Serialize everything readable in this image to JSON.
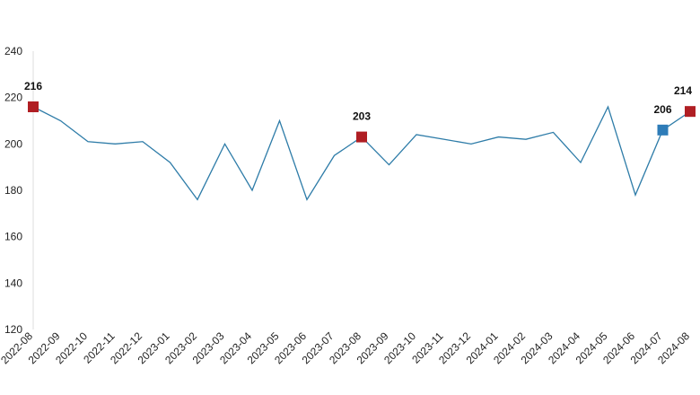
{
  "chart_data": {
    "type": "line",
    "title": "",
    "xlabel": "",
    "ylabel": "",
    "ylim": [
      120,
      240
    ],
    "yticks": [
      120,
      140,
      160,
      180,
      200,
      220,
      240
    ],
    "grid": false,
    "legend": "none",
    "categories": [
      "2022-08",
      "2022-09",
      "2022-10",
      "2022-11",
      "2022-12",
      "2023-01",
      "2023-02",
      "2023-03",
      "2023-04",
      "2023-05",
      "2023-06",
      "2023-07",
      "2023-08",
      "2023-09",
      "2023-10",
      "2023-11",
      "2023-12",
      "2024-01",
      "2024-02",
      "2024-03",
      "2024-04",
      "2024-05",
      "2024-06",
      "2024-07",
      "2024-08"
    ],
    "series": [
      {
        "values": [
          216,
          210,
          201,
          200,
          201,
          192,
          176,
          200,
          180,
          210,
          176,
          195,
          203,
          191,
          204,
          202,
          200,
          203,
          202,
          205,
          192,
          216,
          178,
          206,
          214
        ],
        "color": "#2e7ca8"
      }
    ],
    "highlights": [
      {
        "category": "2022-08",
        "value": 216,
        "label": "216",
        "color": "#b01e23"
      },
      {
        "category": "2023-08",
        "value": 203,
        "label": "203",
        "color": "#b01e23"
      },
      {
        "category": "2024-07",
        "value": 206,
        "label": "206",
        "color": "#2e7cb8"
      },
      {
        "category": "2024-08",
        "value": 214,
        "label": "214",
        "color": "#b01e23"
      }
    ]
  }
}
